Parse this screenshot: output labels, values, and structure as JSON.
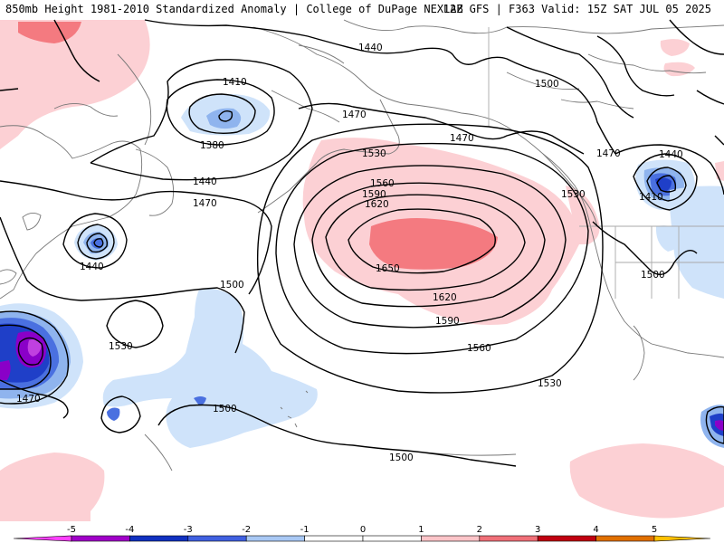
{
  "header": {
    "title_left": "850mb Height 1981-2010 Standardized Anomaly | College of DuPage NEXLAB",
    "title_right": "12Z GFS | F363 Valid: 15Z SAT JUL 05 2025"
  },
  "map": {
    "contour_labels": [
      "1440",
      "1410",
      "1380",
      "1470",
      "1440",
      "1440",
      "1470",
      "1500",
      "1530",
      "1560",
      "1590",
      "1620",
      "1650",
      "1620",
      "1590",
      "1560",
      "1530",
      "1500",
      "1500",
      "1530",
      "1470",
      "1440",
      "1410",
      "1500",
      "1500",
      "1470",
      "1530",
      "1470",
      "1440"
    ],
    "anomaly_colors": {
      "strong_neg": "#8a00c8",
      "neg_4": "#1f3fc8",
      "neg_3": "#4a70e0",
      "neg_2": "#8fb4ee",
      "neg_1": "#cfe3fa",
      "pos_1": "#fcd0d4",
      "pos_2": "#f47a80",
      "pos_3": "#d8343c"
    }
  },
  "colorbar": {
    "tick_labels": [
      "-5",
      "-4",
      "-3",
      "-2",
      "-1",
      "0",
      "1",
      "2",
      "3",
      "4",
      "5"
    ],
    "segment_colors": [
      "#ff40ff",
      "#a000c8",
      "#1030c0",
      "#4060e0",
      "#a8c8f4",
      "#ffffff",
      "#ffffff",
      "#fcc4c8",
      "#f07078",
      "#c00010",
      "#e07000",
      "#ffc000"
    ]
  }
}
